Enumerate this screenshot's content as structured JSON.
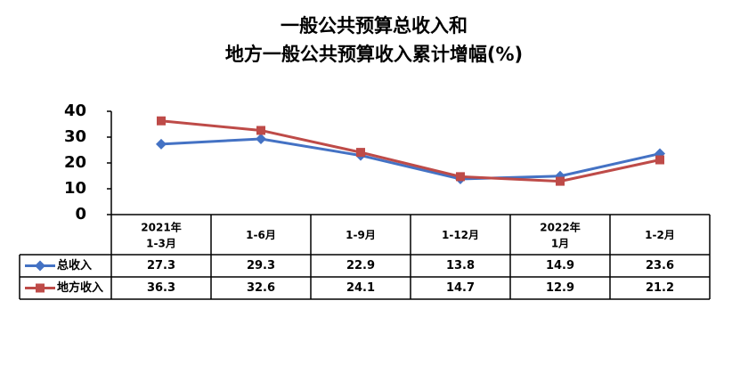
{
  "chart_data": {
    "type": "line",
    "title": "一般公共预算总收入和\n地方一般公共预算收入累计增幅(%)",
    "categories": [
      "2021年\n1-3月",
      "1-6月",
      "1-9月",
      "1-12月",
      "2022年\n1月",
      "1-2月"
    ],
    "series": [
      {
        "name": "总收入",
        "color": "#4472c4",
        "marker": "diamond",
        "values": [
          27.3,
          29.3,
          22.9,
          13.8,
          14.9,
          23.6
        ]
      },
      {
        "name": "地方收入",
        "color": "#be4b48",
        "marker": "square",
        "values": [
          36.3,
          32.6,
          24.1,
          14.7,
          12.9,
          21.2
        ]
      }
    ],
    "ylim": [
      0,
      40
    ],
    "yticks": [
      0,
      10,
      20,
      30,
      40
    ],
    "grid": false,
    "legend": "table"
  }
}
